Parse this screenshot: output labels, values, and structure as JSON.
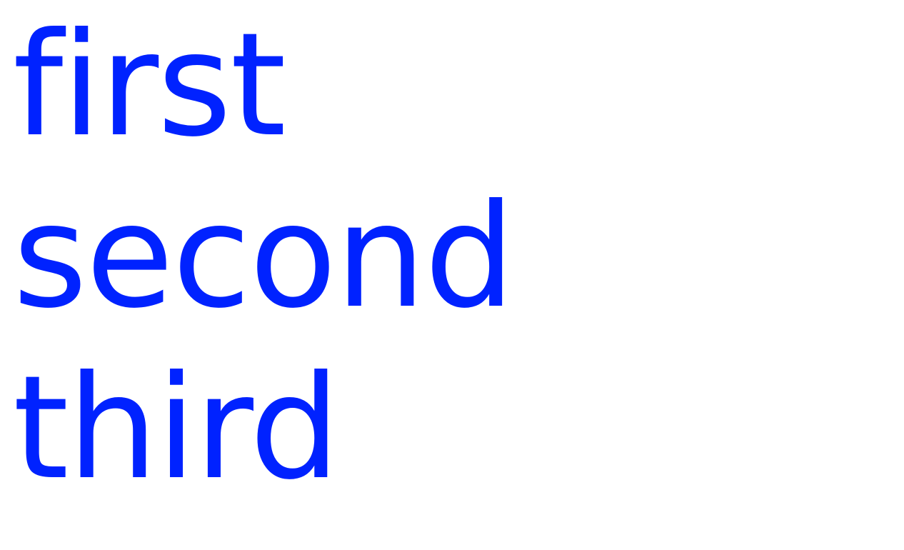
{
  "colors": {
    "text": "#0022ff",
    "background": "#ffffff"
  },
  "words": [
    "first",
    "second",
    "third"
  ]
}
